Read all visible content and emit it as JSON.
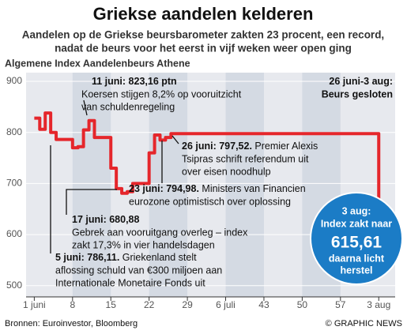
{
  "chart_data": {
    "type": "line",
    "title": "Griekse aandelen kelderen",
    "subtitle": [
      "Aandelen op de Griekse beursbarometer zakten 23 procent, een record,",
      "nadat de beurs voor het eerst in vijf weken weer open ging"
    ],
    "y_label": "Algemene Index Aandelenbeurs Athene",
    "x": [
      1,
      2,
      3,
      4,
      5,
      8,
      9,
      10,
      11,
      12,
      15,
      16,
      17,
      18,
      19,
      22,
      23,
      24,
      25,
      26,
      64
    ],
    "series": [
      {
        "name": "Algemene Index",
        "color": "#e5262b",
        "values": [
          828,
          806,
          838,
          800,
          786.11,
          770,
          772,
          805,
          823.16,
          790,
          730,
          690,
          680.88,
          684,
          700,
          760,
          794.98,
          785,
          790,
          797.52,
          615.61
        ]
      }
    ],
    "drawstyle": "steps-post",
    "xlim": [
      -0.5,
      67
    ],
    "xticks": [
      {
        "value": 1,
        "label": "1 juni"
      },
      8,
      15,
      22,
      29,
      {
        "value": 36,
        "label": "6 juli"
      },
      43,
      50,
      57,
      {
        "value": 64,
        "label": "3 aug"
      }
    ],
    "ylim": [
      478,
      917
    ],
    "yticks": [
      500,
      600,
      700,
      800,
      900
    ],
    "annotations": [
      {
        "heading": "11 juni: 823,16 ptn",
        "lines": [
          "Koersen stijgen 8,2% op vooruitzicht",
          "van schuldenregeling"
        ]
      },
      {
        "heading": "26 juni-3 aug:",
        "lines": [
          "Beurs gesloten"
        ]
      },
      {
        "heading": "26 juni: 797,52.",
        "lines": [
          " Premier Alexis",
          "Tsipras schrift referendum uit",
          "over eisen noodhulp"
        ]
      },
      {
        "heading": "23 juni: 794,98.",
        "lines": [
          " Ministers van Financien",
          "eurozone optimistisch over oplossing"
        ]
      },
      {
        "heading": "17 juni: 680,88",
        "lines": [
          "Gebrek aan vooruitgang overleg – index",
          "zakt 17,3% in vier handelsdagen"
        ]
      },
      {
        "heading": "5 juni: 786,11.",
        "lines": [
          " Griekenland stelt",
          "aflossing schuld van €300 miljoen aan",
          "Internationale Monetaire Fonds uit"
        ]
      }
    ],
    "callout": {
      "lines": [
        "3 aug:",
        "Index zakt naar"
      ],
      "value": "615,61",
      "after": [
        "daarna licht",
        "herstel"
      ]
    },
    "source": "Bronnen: Euroinvestor, Bloomberg",
    "credit": "© GRAPHIC NEWS"
  }
}
